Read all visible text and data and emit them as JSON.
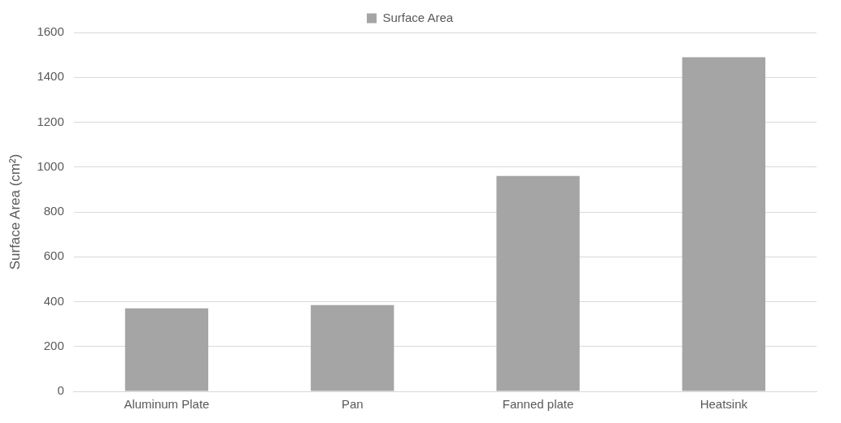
{
  "chart_data": {
    "type": "bar",
    "ylabel": "Surface Area (cm²)",
    "categories": [
      "Aluminum Plate",
      "Pan",
      "Fanned plate",
      "Heatsink"
    ],
    "series": [
      {
        "name": "Surface Area",
        "color": "#a5a5a5",
        "values": [
          370,
          385,
          960,
          1490
        ]
      }
    ],
    "ylim": [
      0,
      1600
    ],
    "yticks": [
      0,
      200,
      400,
      600,
      800,
      1000,
      1200,
      1400,
      1600
    ],
    "grid": "y",
    "legend": "top"
  }
}
